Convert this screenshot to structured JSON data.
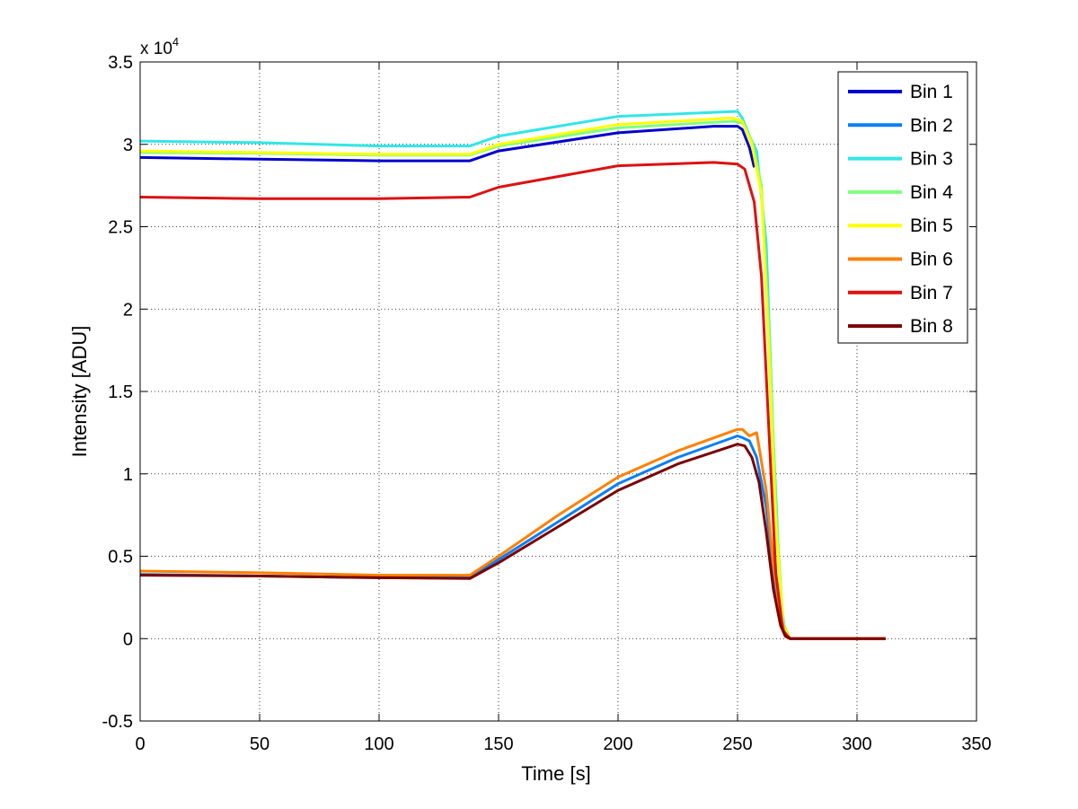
{
  "chart_data": {
    "type": "line",
    "xlabel": "Time [s]",
    "ylabel": "Intensity [ADU]",
    "scale_label": "x 10",
    "scale_exponent": "4",
    "xlim": [
      0,
      350
    ],
    "ylim": [
      -5000,
      35000
    ],
    "grid": true,
    "legend_position": "top-right",
    "x_ticks": [
      0,
      50,
      100,
      150,
      200,
      250,
      300,
      350
    ],
    "x_tick_labels": [
      "0",
      "50",
      "100",
      "150",
      "200",
      "250",
      "300",
      "350"
    ],
    "y_ticks": [
      -5000,
      0,
      5000,
      10000,
      15000,
      20000,
      25000,
      30000,
      35000
    ],
    "y_tick_labels": [
      "-0.5",
      "0",
      "0.5",
      "1",
      "1.5",
      "2",
      "2.5",
      "3",
      "3.5"
    ],
    "series": [
      {
        "name": "Bin 1",
        "color": "#0000cc",
        "x": [
          0,
          50,
          100,
          138,
          150,
          200,
          240,
          250,
          252,
          255,
          257
        ],
        "y": [
          29200,
          29100,
          29000,
          29000,
          29600,
          30700,
          31100,
          31100,
          30900,
          29800,
          28600
        ]
      },
      {
        "name": "Bin 2",
        "color": "#0a7ff5",
        "x": [
          0,
          50,
          100,
          138,
          150,
          175,
          200,
          225,
          250,
          252,
          255,
          258,
          262,
          265,
          268,
          270,
          272,
          280,
          300,
          312
        ],
        "y": [
          3900,
          3800,
          3700,
          3700,
          4800,
          7100,
          9400,
          11000,
          12300,
          12200,
          12000,
          11000,
          8000,
          4000,
          1200,
          200,
          0,
          0,
          0,
          0
        ]
      },
      {
        "name": "Bin 3",
        "color": "#33e6e6",
        "x": [
          0,
          50,
          100,
          138,
          150,
          200,
          250,
          252,
          255,
          258,
          262,
          265,
          268,
          270,
          272,
          280,
          300,
          312
        ],
        "y": [
          30200,
          30100,
          29900,
          29900,
          30500,
          31700,
          32000,
          31600,
          30500,
          29600,
          24000,
          12000,
          2500,
          200,
          0,
          0,
          0,
          0
        ]
      },
      {
        "name": "Bin 4",
        "color": "#80ff80",
        "x": [
          0,
          50,
          100,
          138,
          150,
          200,
          248,
          252,
          256,
          260,
          263,
          266,
          269,
          272,
          280,
          312
        ],
        "y": [
          29500,
          29450,
          29350,
          29350,
          29900,
          31000,
          31400,
          31300,
          30200,
          27500,
          19000,
          8000,
          1000,
          0,
          0,
          0
        ]
      },
      {
        "name": "Bin 5",
        "color": "#ffff00",
        "x": [
          0,
          50,
          100,
          138,
          150,
          200,
          248,
          252,
          256,
          260,
          263,
          266,
          269,
          272,
          280,
          312
        ],
        "y": [
          29600,
          29500,
          29400,
          29400,
          30000,
          31200,
          31600,
          31400,
          30000,
          27000,
          18000,
          7000,
          800,
          0,
          0,
          0
        ]
      },
      {
        "name": "Bin 6",
        "color": "#ff8000",
        "x": [
          0,
          50,
          100,
          138,
          150,
          175,
          200,
          225,
          250,
          252,
          255,
          258,
          262,
          265,
          268,
          270,
          272,
          280,
          300,
          312
        ],
        "y": [
          4100,
          4000,
          3850,
          3850,
          5000,
          7500,
          9800,
          11400,
          12700,
          12700,
          12300,
          12500,
          9000,
          4500,
          1400,
          200,
          0,
          0,
          0,
          0
        ]
      },
      {
        "name": "Bin 7",
        "color": "#dd1111",
        "x": [
          0,
          50,
          100,
          138,
          150,
          200,
          240,
          250,
          253,
          257,
          260,
          263,
          266,
          269,
          272,
          280,
          312
        ],
        "y": [
          26800,
          26700,
          26700,
          26800,
          27400,
          28700,
          28900,
          28800,
          28500,
          26500,
          22000,
          13000,
          4000,
          500,
          0,
          0,
          0
        ]
      },
      {
        "name": "Bin 8",
        "color": "#7a0000",
        "x": [
          0,
          50,
          100,
          138,
          150,
          175,
          200,
          225,
          250,
          253,
          256,
          259,
          262,
          265,
          268,
          270,
          272,
          280,
          300,
          312
        ],
        "y": [
          3850,
          3800,
          3700,
          3650,
          4600,
          6800,
          9000,
          10600,
          11800,
          11700,
          11000,
          9500,
          6500,
          3000,
          800,
          150,
          0,
          0,
          0,
          0
        ]
      }
    ]
  }
}
